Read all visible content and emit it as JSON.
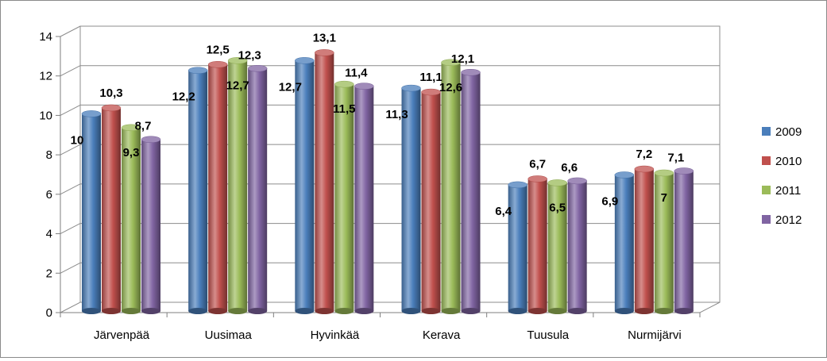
{
  "chart_data": {
    "type": "bar",
    "categories": [
      "Järvenpää",
      "Uusimaa",
      "Hyvinkää",
      "Kerava",
      "Tuusula",
      "Nurmijärvi"
    ],
    "series": [
      {
        "name": "2009",
        "color": "#4a7ebb",
        "values": [
          10,
          12.2,
          12.7,
          11.3,
          6.4,
          6.9
        ],
        "labels": [
          "10",
          "12,2",
          "12,7",
          "11,3",
          "6,4",
          "6,9"
        ]
      },
      {
        "name": "2010",
        "color": "#c0504d",
        "values": [
          10.3,
          12.5,
          13.1,
          11.1,
          6.7,
          7.2
        ],
        "labels": [
          "10,3",
          "12,5",
          "13,1",
          "11,1",
          "6,7",
          "7,2"
        ]
      },
      {
        "name": "2011",
        "color": "#9bbb59",
        "values": [
          9.3,
          12.7,
          11.5,
          12.6,
          6.5,
          7
        ],
        "labels": [
          "9,3",
          "12,7",
          "11,5",
          "12,6",
          "6,5",
          "7"
        ]
      },
      {
        "name": "2012",
        "color": "#8064a2",
        "values": [
          8.7,
          12.3,
          11.4,
          12.1,
          6.6,
          7.1
        ],
        "labels": [
          "8,7",
          "12,3",
          "11,4",
          "12,1",
          "6,6",
          "7,1"
        ]
      }
    ],
    "yticks": [
      "0",
      "2",
      "4",
      "6",
      "8",
      "10",
      "12",
      "14"
    ],
    "ylim": [
      0,
      14
    ],
    "grid": true,
    "legend_position": "right",
    "style": "3d-cylinder"
  }
}
